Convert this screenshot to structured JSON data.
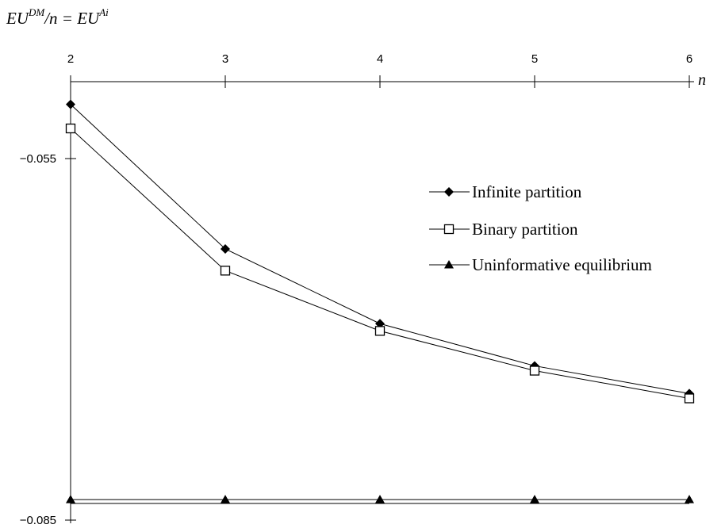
{
  "chart_data": {
    "type": "line",
    "title_parts": {
      "a": "EU",
      "a_sup": "DM",
      "mid": "/n = ",
      "b": "EU",
      "b_sup": "Ai"
    },
    "xlabel": "n",
    "x": [
      2,
      3,
      4,
      5,
      6
    ],
    "x_tick_labels": [
      "2",
      "3",
      "4",
      "5",
      "6"
    ],
    "y_tick_labels": [
      "-0.055",
      "-0.085"
    ],
    "ylim": [
      -0.085,
      -0.0475
    ],
    "x_axis_position": "top",
    "grid": false,
    "legend_position": "right-middle",
    "series": [
      {
        "name": "Infinite partition",
        "marker": "filled-diamond",
        "values": [
          -0.0505,
          -0.0625,
          -0.0687,
          -0.0722,
          -0.0745
        ]
      },
      {
        "name": "Binary partition",
        "marker": "open-square",
        "values": [
          -0.0525,
          -0.0643,
          -0.0693,
          -0.0726,
          -0.0749
        ]
      },
      {
        "name": "Uninformative equilibrium",
        "marker": "filled-triangle",
        "values": [
          -0.0833,
          -0.0833,
          -0.0833,
          -0.0833,
          -0.0833
        ]
      }
    ]
  }
}
